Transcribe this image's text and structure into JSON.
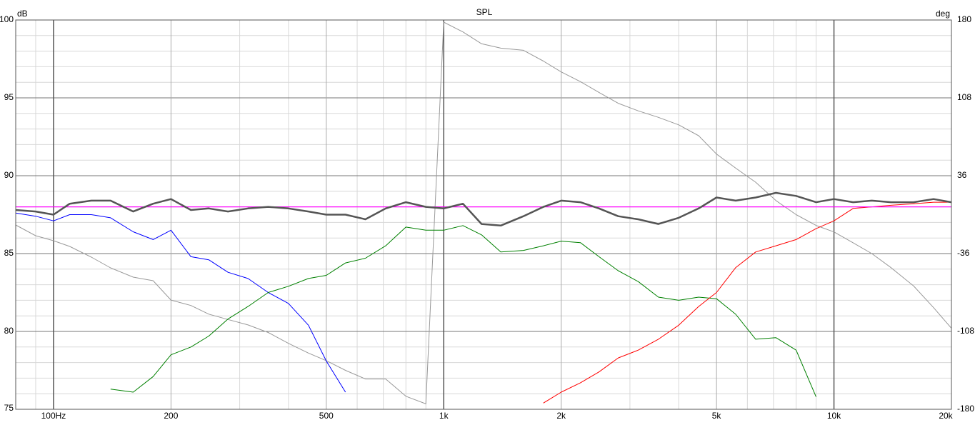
{
  "chart_data": {
    "type": "line",
    "title": "SPL",
    "ylabel": "dB",
    "y2label": "deg",
    "xscale": "log",
    "xlim": [
      80,
      20000
    ],
    "ylim": [
      75,
      100
    ],
    "y2lim": [
      -180,
      180
    ],
    "xticks": [
      {
        "value": 100,
        "label": "100Hz"
      },
      200,
      500,
      {
        "value": 1000,
        "label": "1k"
      },
      {
        "value": 2000,
        "label": "2k"
      },
      {
        "value": 5000,
        "label": "5k"
      },
      {
        "value": 10000,
        "label": "10k"
      },
      {
        "value": 20000,
        "label": "20k"
      }
    ],
    "xminorticks": [
      90,
      300,
      400,
      600,
      700,
      800,
      900,
      3000,
      4000,
      6000,
      7000,
      8000,
      9000
    ],
    "yticks": [
      75,
      80,
      85,
      90,
      95,
      100
    ],
    "yminorticks": [
      76,
      77,
      78,
      79,
      81,
      82,
      83,
      84,
      86,
      87,
      88,
      89,
      91,
      92,
      93,
      94,
      96,
      97,
      98,
      99
    ],
    "y2ticks": [
      -180,
      -108,
      -36,
      36,
      108,
      180
    ],
    "grid": true,
    "x": [
      80,
      90,
      100,
      110,
      125,
      140,
      160,
      180,
      200,
      225,
      250,
      280,
      315,
      355,
      400,
      450,
      500,
      560,
      630,
      710,
      800,
      900,
      1000,
      1120,
      1250,
      1400,
      1600,
      1800,
      2000,
      2240,
      2500,
      2800,
      3150,
      3550,
      4000,
      4500,
      5000,
      5600,
      6300,
      7100,
      8000,
      9000,
      10000,
      11200,
      12500,
      14000,
      16000,
      18000,
      20000
    ],
    "series": [
      {
        "color": "#999999",
        "axis": "y2",
        "width": 1,
        "values": [
          -9.6,
          -19.5,
          -24.1,
          -29.4,
          -39.3,
          -49.2,
          -57.8,
          -61.1,
          -79,
          -84,
          -92,
          -97,
          -102,
          -109,
          -119,
          -128,
          -135,
          -144,
          -152,
          -152,
          -168,
          -175,
          178,
          169,
          158,
          154,
          152,
          142,
          132,
          123,
          113,
          103,
          96,
          90,
          83,
          73,
          56,
          43,
          30,
          13,
          0,
          -10,
          -16,
          -26,
          -36,
          -49,
          -66,
          -86,
          -105
        ]
      },
      {
        "color": "#0000ff",
        "width": 1,
        "values": [
          87.6,
          87.4,
          87.1,
          87.5,
          87.5,
          87.3,
          86.4,
          85.9,
          86.5,
          84.8,
          84.6,
          83.8,
          83.4,
          82.5,
          81.8,
          80.4,
          78.1,
          76.1,
          null,
          null,
          null,
          null,
          null,
          null,
          null,
          null,
          null,
          null,
          null,
          null,
          null,
          null,
          null,
          null,
          null,
          null,
          null,
          null,
          null,
          null,
          null,
          null,
          null,
          null,
          null,
          null,
          null,
          null,
          null
        ]
      },
      {
        "color": "#008000",
        "width": 1,
        "values": [
          null,
          null,
          null,
          null,
          null,
          76.3,
          76.1,
          77.1,
          78.5,
          79.0,
          79.7,
          80.8,
          81.6,
          82.5,
          82.9,
          83.4,
          83.6,
          84.4,
          84.7,
          85.5,
          86.7,
          86.5,
          86.5,
          86.8,
          86.2,
          85.1,
          85.2,
          85.5,
          85.8,
          85.7,
          84.8,
          83.9,
          83.2,
          82.2,
          82.0,
          82.2,
          82.1,
          81.1,
          79.5,
          79.6,
          78.8,
          75.8,
          null,
          null,
          null,
          null,
          null,
          null,
          null
        ]
      },
      {
        "color": "#ff0000",
        "width": 1,
        "values": [
          null,
          null,
          null,
          null,
          null,
          null,
          null,
          null,
          null,
          null,
          null,
          null,
          null,
          null,
          null,
          null,
          null,
          null,
          null,
          null,
          null,
          null,
          null,
          null,
          null,
          null,
          null,
          75.4,
          76.1,
          76.7,
          77.4,
          78.3,
          78.8,
          79.5,
          80.4,
          81.6,
          82.5,
          84.1,
          85.1,
          85.5,
          85.9,
          86.6,
          87.1,
          87.9,
          88.0,
          88.1,
          88.2,
          88.3,
          88.3
        ]
      },
      {
        "color": "#ff00ff",
        "width": 1.2,
        "x": [
          80,
          20000
        ],
        "values": [
          88,
          88
        ]
      },
      {
        "color": "#555555",
        "width": 2.5,
        "values": [
          87.8,
          87.7,
          87.5,
          88.2,
          88.4,
          88.4,
          87.7,
          88.2,
          88.5,
          87.8,
          87.9,
          87.7,
          87.9,
          88.0,
          87.9,
          87.7,
          87.5,
          87.5,
          87.2,
          87.9,
          88.3,
          88.0,
          87.9,
          88.2,
          86.9,
          86.8,
          87.4,
          88.0,
          88.4,
          88.3,
          87.9,
          87.4,
          87.2,
          86.9,
          87.3,
          87.9,
          88.6,
          88.4,
          88.6,
          88.9,
          88.7,
          88.3,
          88.5,
          88.3,
          88.4,
          88.3,
          88.3,
          88.5,
          88.3
        ]
      }
    ]
  }
}
